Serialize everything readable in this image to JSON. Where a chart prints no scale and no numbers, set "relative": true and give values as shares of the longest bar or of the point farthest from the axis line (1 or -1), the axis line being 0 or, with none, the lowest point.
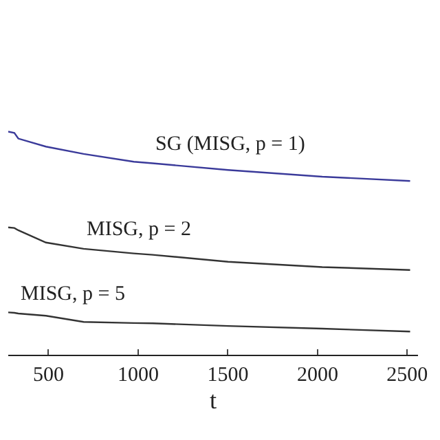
{
  "chart_data": {
    "type": "line",
    "relative": true,
    "xlabel": "t",
    "xlim": [
      276,
      2560
    ],
    "xticks": [
      500,
      1000,
      1500,
      2000,
      2500
    ],
    "legend": false,
    "marker": "none",
    "line_style": "solid",
    "x": [
      276,
      310,
      332,
      486,
      696,
      976,
      1081,
      1501,
      2026,
      2516
    ],
    "series": [
      {
        "name": "SG (MISG, p = 1)",
        "color": "#3a3a9a",
        "values": [
          1.0,
          0.994,
          0.969,
          0.933,
          0.9,
          0.865,
          0.858,
          0.828,
          0.798,
          0.779
        ]
      },
      {
        "name": "MISG, p = 2",
        "color": "#333333",
        "values": [
          0.571,
          0.568,
          0.558,
          0.503,
          0.475,
          0.454,
          0.448,
          0.417,
          0.393,
          0.38
        ]
      },
      {
        "name": "MISG, p = 5",
        "color": "#333333",
        "values": [
          0.19,
          0.188,
          0.185,
          0.175,
          0.147,
          0.142,
          0.141,
          0.129,
          0.117,
          0.104
        ]
      }
    ]
  }
}
